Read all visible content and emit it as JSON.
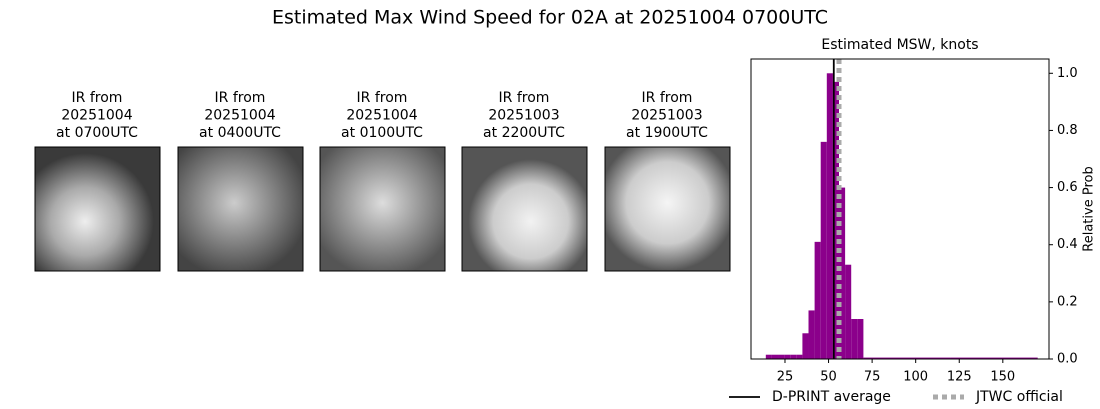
{
  "title": "Estimated Max Wind Speed for 02A at 20251004 0700UTC",
  "panels": [
    {
      "lines": [
        "IR from",
        "20251004",
        "at 0700UTC"
      ]
    },
    {
      "lines": [
        "IR from",
        "20251004",
        "at 0400UTC"
      ]
    },
    {
      "lines": [
        "IR from",
        "20251004",
        "at 0100UTC"
      ]
    },
    {
      "lines": [
        "IR from",
        "20251003",
        "at 2200UTC"
      ]
    },
    {
      "lines": [
        "IR from",
        "20251003",
        "at 1900UTC"
      ]
    }
  ],
  "chart_data": {
    "type": "histogram",
    "title": "Estimated MSW, knots",
    "ylabel": "Relative Prob",
    "color": "#8b008b",
    "bins": [
      14,
      17.5,
      21,
      24.5,
      28,
      31.5,
      35,
      38.5,
      42,
      45.5,
      49,
      52.5,
      56,
      59.5,
      63,
      66.5,
      70,
      73.5,
      120,
      170
    ],
    "values": [
      0.015,
      0.015,
      0.015,
      0.015,
      0.015,
      0.015,
      0.09,
      0.17,
      0.41,
      0.76,
      1.0,
      0.97,
      0.6,
      0.33,
      0.14,
      0.14,
      0.005,
      0.005,
      0.005
    ],
    "lines": [
      {
        "name": "D-PRINT average",
        "value": 53,
        "color": "#000000",
        "style": "solid"
      },
      {
        "name": "JTWC official",
        "value": 56,
        "color": "#aaaaaa",
        "style": "dotted"
      }
    ],
    "xlim": [
      5.5,
      176.5
    ],
    "xticks": [
      25,
      50,
      75,
      100,
      125,
      150
    ],
    "ylim": [
      0,
      1.05
    ],
    "yticks": [
      {
        "value": 0,
        "label": "0.0"
      },
      0.2,
      0.4,
      0.6,
      0.8,
      {
        "value": 1,
        "label": "1.0"
      }
    ],
    "yaxis_side": "right",
    "legend": "bottom-right"
  }
}
